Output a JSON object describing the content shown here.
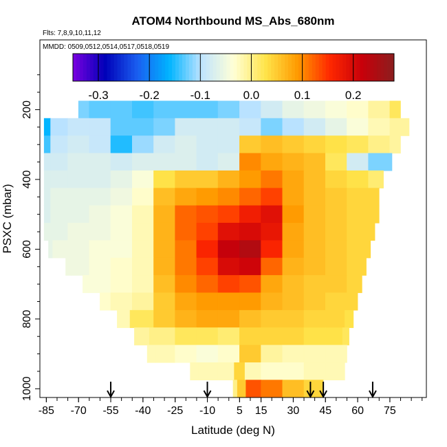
{
  "chart_data": {
    "type": "heatmap",
    "title": "ATOM4 Northbound MS_Abs_680nm",
    "flights_note": "Flts: 7,8,9,10,11,12",
    "dates_note": "MMDD: 0509,0512,0514,0517,0518,0519",
    "xlabel": "Latitude (deg N)",
    "ylabel": "PSXC (mbar)",
    "xlim": [
      -88,
      92
    ],
    "ylim": [
      1025,
      0
    ],
    "x_ticks": [
      -85,
      -70,
      -55,
      -40,
      -25,
      -10,
      5,
      15,
      30,
      45,
      60,
      75
    ],
    "x_tick_labels": [
      "-85",
      "-70",
      "-55",
      "-40",
      "-25",
      "-10",
      "5",
      "15",
      "30",
      "45",
      "60",
      "75"
    ],
    "y_ticks": [
      200,
      400,
      600,
      800,
      1000
    ],
    "y_tick_labels": [
      "200",
      "400",
      "600",
      "800",
      "1000"
    ],
    "colorbar": {
      "min": -0.35,
      "max": 0.28,
      "ticks": [
        -0.3,
        -0.2,
        -0.1,
        0.0,
        0.1,
        0.2
      ],
      "tick_labels": [
        "-0.3",
        "-0.2",
        "-0.1",
        "0.0",
        "0.1",
        "0.2"
      ],
      "colors": [
        "#7a00e0",
        "#0000b8",
        "#1a5ef0",
        "#00b4ff",
        "#bfe3ff",
        "#ffffd6",
        "#ffe44a",
        "#ff9a00",
        "#ff2800",
        "#c8000a",
        "#8b1e1e"
      ]
    },
    "grid": false,
    "legend": "colorbar-top",
    "profile_markers_lat": [
      -55,
      -10,
      38,
      44,
      67
    ],
    "pressure_levels": [
      200,
      250,
      300,
      350,
      400,
      450,
      500,
      550,
      600,
      650,
      700,
      750,
      800,
      850,
      900,
      950,
      1000
    ],
    "levels": [
      {
        "p": 200,
        "xmin": -70,
        "xmax": 80,
        "x": [
          -70,
          -60,
          -50,
          -40,
          -30,
          -20,
          -10,
          0,
          10,
          20,
          30,
          40,
          50,
          60,
          70,
          80
        ],
        "v": [
          -0.12,
          -0.13,
          -0.13,
          -0.14,
          -0.13,
          -0.13,
          -0.13,
          -0.12,
          -0.1,
          -0.08,
          -0.06,
          -0.05,
          -0.04,
          -0.03,
          -0.01,
          0.02
        ]
      },
      {
        "p": 250,
        "xmin": -86,
        "xmax": 84,
        "x": [
          -86,
          -80,
          -70,
          -60,
          -50,
          -40,
          -30,
          -20,
          -10,
          0,
          10,
          20,
          30,
          40,
          50,
          60,
          70,
          80
        ],
        "v": [
          -0.16,
          -0.1,
          -0.09,
          -0.09,
          -0.13,
          -0.13,
          -0.12,
          -0.08,
          -0.08,
          -0.08,
          -0.09,
          -0.12,
          -0.1,
          -0.08,
          -0.06,
          -0.04,
          -0.02,
          -0.01
        ]
      },
      {
        "p": 300,
        "xmin": -86,
        "xmax": 80,
        "x": [
          -86,
          -80,
          -70,
          -60,
          -50,
          -40,
          -30,
          -20,
          -10,
          0,
          10,
          20,
          30,
          40,
          50,
          60,
          70,
          80
        ],
        "v": [
          -0.14,
          -0.09,
          -0.08,
          -0.09,
          -0.15,
          -0.11,
          -0.08,
          -0.07,
          -0.08,
          -0.08,
          0.05,
          0.06,
          0.05,
          0.04,
          0.03,
          0.02,
          0.0,
          -0.01
        ]
      },
      {
        "p": 350,
        "xmin": -86,
        "xmax": 76,
        "x": [
          -86,
          -80,
          -70,
          -60,
          -50,
          -40,
          -30,
          -20,
          -10,
          0,
          10,
          20,
          30,
          40,
          50,
          60,
          70
        ],
        "v": [
          -0.08,
          -0.08,
          -0.07,
          -0.07,
          -0.08,
          -0.07,
          -0.07,
          -0.07,
          -0.08,
          -0.07,
          0.1,
          0.08,
          0.07,
          0.06,
          0.02,
          -0.08,
          -0.12
        ]
      },
      {
        "p": 400,
        "xmin": -86,
        "xmax": 72,
        "x": [
          -86,
          -80,
          -70,
          -60,
          -50,
          -40,
          -30,
          -20,
          -10,
          0,
          10,
          20,
          30,
          40,
          50,
          60,
          70
        ],
        "v": [
          -0.07,
          -0.07,
          -0.07,
          -0.07,
          -0.06,
          -0.04,
          0.03,
          0.05,
          0.05,
          0.07,
          0.09,
          0.11,
          0.08,
          0.06,
          0.04,
          0.03,
          0.01
        ]
      },
      {
        "p": 450,
        "xmin": -86,
        "xmax": 70,
        "x": [
          -86,
          -80,
          -70,
          -60,
          -50,
          -40,
          -30,
          -20,
          -10,
          0,
          10,
          20,
          30,
          40,
          50,
          60
        ],
        "v": [
          -0.07,
          -0.06,
          -0.06,
          -0.06,
          -0.05,
          -0.03,
          0.06,
          0.08,
          0.09,
          0.1,
          0.12,
          0.14,
          0.08,
          0.06,
          0.05,
          0.04
        ]
      },
      {
        "p": 500,
        "xmin": -86,
        "xmax": 70,
        "x": [
          -86,
          -80,
          -70,
          -60,
          -50,
          -40,
          -30,
          -20,
          -10,
          0,
          10,
          20,
          30,
          40,
          50,
          60
        ],
        "v": [
          -0.07,
          -0.06,
          -0.06,
          -0.05,
          -0.04,
          -0.02,
          0.07,
          0.12,
          0.13,
          0.14,
          0.17,
          0.19,
          0.09,
          0.06,
          0.05,
          0.04
        ]
      },
      {
        "p": 550,
        "xmin": -86,
        "xmax": 68,
        "x": [
          -86,
          -80,
          -70,
          -60,
          -50,
          -40,
          -30,
          -20,
          -10,
          0,
          10,
          20,
          30,
          40,
          50,
          60
        ],
        "v": [
          -0.06,
          -0.06,
          -0.05,
          -0.05,
          -0.04,
          -0.02,
          0.07,
          0.12,
          0.14,
          0.19,
          0.2,
          0.18,
          0.08,
          0.06,
          0.05,
          0.04
        ]
      },
      {
        "p": 600,
        "xmin": -84,
        "xmax": 66,
        "x": [
          -84,
          -80,
          -70,
          -60,
          -50,
          -40,
          -30,
          -20,
          -10,
          0,
          10,
          20,
          30,
          40,
          50,
          60
        ],
        "v": [
          -0.06,
          -0.05,
          -0.05,
          -0.04,
          -0.04,
          -0.02,
          0.07,
          0.11,
          0.16,
          0.22,
          0.24,
          0.16,
          0.08,
          0.06,
          0.05,
          0.04
        ]
      },
      {
        "p": 650,
        "xmin": -76,
        "xmax": 64,
        "x": [
          -76,
          -70,
          -60,
          -50,
          -40,
          -30,
          -20,
          -10,
          0,
          10,
          20,
          30,
          40,
          50,
          60
        ],
        "v": [
          -0.05,
          -0.05,
          -0.04,
          -0.03,
          -0.02,
          0.07,
          0.11,
          0.14,
          0.2,
          0.21,
          0.12,
          0.07,
          0.06,
          0.05,
          0.04
        ]
      },
      {
        "p": 700,
        "xmin": -68,
        "xmax": 62,
        "x": [
          -68,
          -60,
          -50,
          -40,
          -30,
          -20,
          -10,
          0,
          10,
          20,
          30,
          40,
          50,
          60
        ],
        "v": [
          -0.04,
          -0.04,
          -0.03,
          -0.02,
          0.06,
          0.1,
          0.12,
          0.14,
          0.13,
          0.08,
          0.06,
          0.05,
          0.05,
          0.04
        ]
      },
      {
        "p": 750,
        "xmin": -60,
        "xmax": 60,
        "x": [
          -60,
          -50,
          -40,
          -30,
          -20,
          -10,
          0,
          10,
          20,
          30,
          40,
          50,
          60
        ],
        "v": [
          -0.03,
          -0.02,
          -0.01,
          0.05,
          0.08,
          0.09,
          0.09,
          0.09,
          0.07,
          0.06,
          0.05,
          0.04,
          0.04
        ]
      },
      {
        "p": 800,
        "xmin": -52,
        "xmax": 58,
        "x": [
          -52,
          -40,
          -30,
          -20,
          -10,
          0,
          10,
          20,
          30,
          40,
          50,
          58
        ],
        "v": [
          -0.02,
          0.02,
          0.05,
          0.07,
          0.08,
          0.08,
          0.06,
          0.05,
          0.05,
          0.04,
          0.04,
          0.03
        ]
      },
      {
        "p": 850,
        "xmin": -44,
        "xmax": 56,
        "x": [
          -44,
          -30,
          -20,
          -10,
          0,
          10,
          20,
          30,
          40,
          50,
          56
        ],
        "v": [
          -0.01,
          0.0,
          0.02,
          0.02,
          0.01,
          0.04,
          0.04,
          0.04,
          0.03,
          0.03,
          0.02
        ]
      },
      {
        "p": 900,
        "xmin": -38,
        "xmax": 55,
        "x": [
          -38,
          -30,
          -20,
          -10,
          0,
          10,
          20,
          30,
          40,
          50
        ],
        "v": [
          -0.02,
          -0.02,
          -0.03,
          -0.04,
          -0.03,
          0.05,
          -0.01,
          -0.02,
          -0.02,
          -0.02
        ]
      },
      {
        "p": 950,
        "xmin": -18,
        "xmax": 54,
        "x": [
          -18,
          -10,
          0,
          5,
          10,
          20,
          30,
          40,
          50
        ],
        "v": [
          -0.02,
          -0.02,
          -0.02,
          0.04,
          -0.02,
          -0.03,
          -0.03,
          -0.02,
          -0.02
        ]
      },
      {
        "p": 1000,
        "xmin": 2,
        "xmax": 44,
        "x": [
          2,
          6,
          10,
          20,
          30,
          40
        ],
        "v": [
          0.0,
          0.05,
          0.13,
          0.11,
          0.06,
          0.04
        ]
      }
    ]
  }
}
